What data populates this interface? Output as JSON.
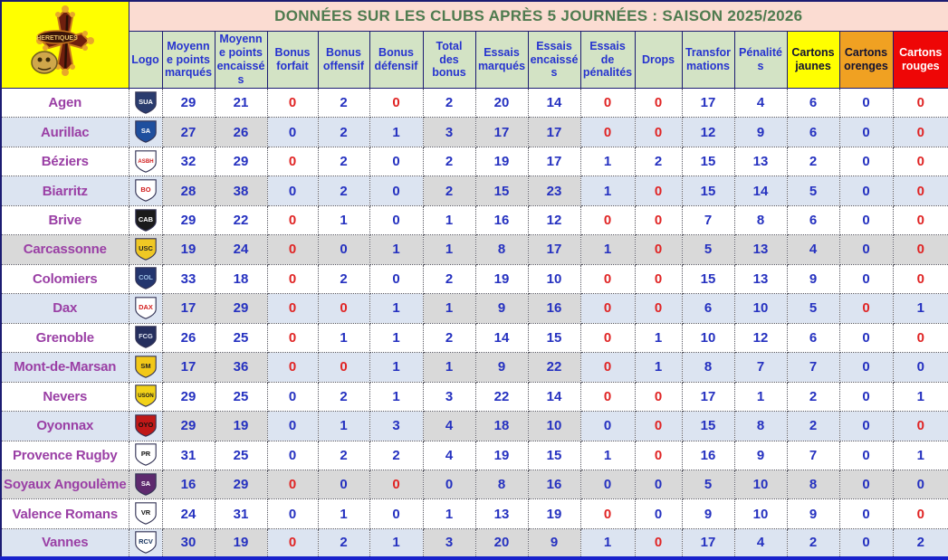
{
  "title": "DONNÉES SUR LES CLUBS APRÈS 5 JOURNÉES : SAISON 2025/2026",
  "brand": {
    "crest_text": "HERETIQUES"
  },
  "colors": {
    "title_bg": "#fbdcd2",
    "title_fg": "#4f7b4f",
    "header_bg": "#d3e3c5",
    "header_fg": "#2633cf",
    "brand_bg": "#ffff00",
    "row_even_bg": "#dce4f1",
    "row_gray_bg": "#d9d9d9",
    "club_name_fg": "#9a3fa5",
    "value_fg": "#2531c0",
    "value_zero_fg": "#e02424",
    "yellow_card_bg": "#ffff00",
    "orange_card_bg": "#f0a122",
    "red_card_bg": "#ee0606"
  },
  "columns": [
    {
      "label": "Logo"
    },
    {
      "label": "Moyenne points marqués"
    },
    {
      "label": "Moyenne points encaissés"
    },
    {
      "label": "Bonus forfait"
    },
    {
      "label": "Bonus offensif"
    },
    {
      "label": "Bonus défensif"
    },
    {
      "label": "Total des bonus"
    },
    {
      "label": "Essais marqués"
    },
    {
      "label": "Essais encaissés"
    },
    {
      "label": "Essais de pénalités"
    },
    {
      "label": "Drops"
    },
    {
      "label": "Transformations"
    },
    {
      "label": "Pénalités"
    },
    {
      "label": "Cartons jaunes",
      "bg": "#ffff00",
      "fg": "#111133"
    },
    {
      "label": "Cartons orenges",
      "bg": "#f0a122",
      "fg": "#111133"
    },
    {
      "label": "Cartons rouges",
      "bg": "#ee0606",
      "fg": "#ffffff"
    }
  ],
  "rows": [
    {
      "club": "Agen",
      "logo": {
        "initials": "SUA",
        "bg": "#2a3c6e",
        "fg": "#ffffff"
      },
      "values": [
        29,
        21,
        0,
        2,
        0,
        2,
        20,
        14,
        0,
        0,
        17,
        4,
        6,
        0,
        0
      ],
      "red": [
        2,
        4,
        8,
        9,
        14
      ],
      "shade": "white"
    },
    {
      "club": "Aurillac",
      "logo": {
        "initials": "SA",
        "bg": "#1f4f9e",
        "fg": "#ffffff"
      },
      "values": [
        27,
        26,
        0,
        2,
        1,
        3,
        17,
        17,
        0,
        0,
        12,
        9,
        6,
        0,
        0
      ],
      "red": [
        8,
        9,
        14
      ],
      "shade": "blue"
    },
    {
      "club": "Béziers",
      "logo": {
        "initials": "ASBH",
        "bg": "#ffffff",
        "fg": "#d01818"
      },
      "values": [
        32,
        29,
        0,
        2,
        0,
        2,
        19,
        17,
        1,
        2,
        15,
        13,
        2,
        0,
        0
      ],
      "red": [
        2,
        14
      ],
      "shade": "white"
    },
    {
      "club": "Biarritz",
      "logo": {
        "initials": "BO",
        "bg": "#ffffff",
        "fg": "#d01818"
      },
      "values": [
        28,
        38,
        0,
        2,
        0,
        2,
        15,
        23,
        1,
        0,
        15,
        14,
        5,
        0,
        0
      ],
      "red": [
        9,
        14
      ],
      "shade": "blue"
    },
    {
      "club": "Brive",
      "logo": {
        "initials": "CAB",
        "bg": "#1a1a1a",
        "fg": "#ffffff"
      },
      "values": [
        29,
        22,
        0,
        1,
        0,
        1,
        16,
        12,
        0,
        0,
        7,
        8,
        6,
        0,
        0
      ],
      "red": [
        2,
        8,
        9,
        14
      ],
      "shade": "white"
    },
    {
      "club": "Carcassonne",
      "logo": {
        "initials": "USC",
        "bg": "#f0c824",
        "fg": "#222222"
      },
      "values": [
        19,
        24,
        0,
        0,
        1,
        1,
        8,
        17,
        1,
        0,
        5,
        13,
        4,
        0,
        0
      ],
      "red": [
        2,
        9,
        14
      ],
      "shade": "gray"
    },
    {
      "club": "Colomiers",
      "logo": {
        "initials": "COL",
        "bg": "#23356e",
        "fg": "#9fc3e8"
      },
      "values": [
        33,
        18,
        0,
        2,
        0,
        2,
        19,
        10,
        0,
        0,
        15,
        13,
        9,
        0,
        0
      ],
      "red": [
        2,
        8,
        9,
        14
      ],
      "shade": "white"
    },
    {
      "club": "Dax",
      "logo": {
        "initials": "DAX",
        "bg": "#ffffff",
        "fg": "#d42020"
      },
      "values": [
        17,
        29,
        0,
        0,
        1,
        1,
        9,
        16,
        0,
        0,
        6,
        10,
        5,
        0,
        1
      ],
      "red": [
        2,
        3,
        8,
        9,
        13
      ],
      "shade": "blue"
    },
    {
      "club": "Grenoble",
      "logo": {
        "initials": "FCG",
        "bg": "#252f5e",
        "fg": "#e0e6f2"
      },
      "values": [
        26,
        25,
        0,
        1,
        1,
        2,
        14,
        15,
        0,
        1,
        10,
        12,
        6,
        0,
        0
      ],
      "red": [
        2,
        8,
        14
      ],
      "shade": "white"
    },
    {
      "club": "Mont-de-Marsan",
      "logo": {
        "initials": "SM",
        "bg": "#f2c818",
        "fg": "#222222"
      },
      "values": [
        17,
        36,
        0,
        0,
        1,
        1,
        9,
        22,
        0,
        1,
        8,
        7,
        7,
        0,
        0
      ],
      "red": [
        2,
        3,
        8
      ],
      "shade": "blue"
    },
    {
      "club": "Nevers",
      "logo": {
        "initials": "USON",
        "bg": "#f2d218",
        "fg": "#1a1a1a"
      },
      "values": [
        29,
        25,
        0,
        2,
        1,
        3,
        22,
        14,
        0,
        0,
        17,
        1,
        2,
        0,
        1
      ],
      "red": [
        8,
        9
      ],
      "shade": "white"
    },
    {
      "club": "Oyonnax",
      "logo": {
        "initials": "OYO",
        "bg": "#c01818",
        "fg": "#111111"
      },
      "values": [
        29,
        19,
        0,
        1,
        3,
        4,
        18,
        10,
        0,
        0,
        15,
        8,
        2,
        0,
        0
      ],
      "red": [
        9,
        14
      ],
      "shade": "blue"
    },
    {
      "club": "Provence Rugby",
      "logo": {
        "initials": "PR",
        "bg": "#ffffff",
        "fg": "#111111"
      },
      "values": [
        31,
        25,
        0,
        2,
        2,
        4,
        19,
        15,
        1,
        0,
        16,
        9,
        7,
        0,
        1
      ],
      "red": [
        9
      ],
      "shade": "white"
    },
    {
      "club": "Soyaux Angoulème",
      "logo": {
        "initials": "SA",
        "bg": "#5e2a6e",
        "fg": "#ffffff"
      },
      "values": [
        16,
        29,
        0,
        0,
        0,
        0,
        8,
        16,
        0,
        0,
        5,
        10,
        8,
        0,
        0
      ],
      "red": [
        2,
        4
      ],
      "shade": "gray"
    },
    {
      "club": "Valence Romans",
      "logo": {
        "initials": "VR",
        "bg": "#ffffff",
        "fg": "#111111"
      },
      "values": [
        24,
        31,
        0,
        1,
        0,
        1,
        13,
        19,
        0,
        0,
        9,
        10,
        9,
        0,
        0
      ],
      "red": [
        8,
        14
      ],
      "shade": "white"
    },
    {
      "club": "Vannes",
      "logo": {
        "initials": "RCV",
        "bg": "#ffffff",
        "fg": "#1a3560"
      },
      "values": [
        30,
        19,
        0,
        2,
        1,
        3,
        20,
        9,
        1,
        0,
        17,
        4,
        2,
        0,
        2
      ],
      "red": [
        2,
        9
      ],
      "shade": "blue"
    }
  ]
}
